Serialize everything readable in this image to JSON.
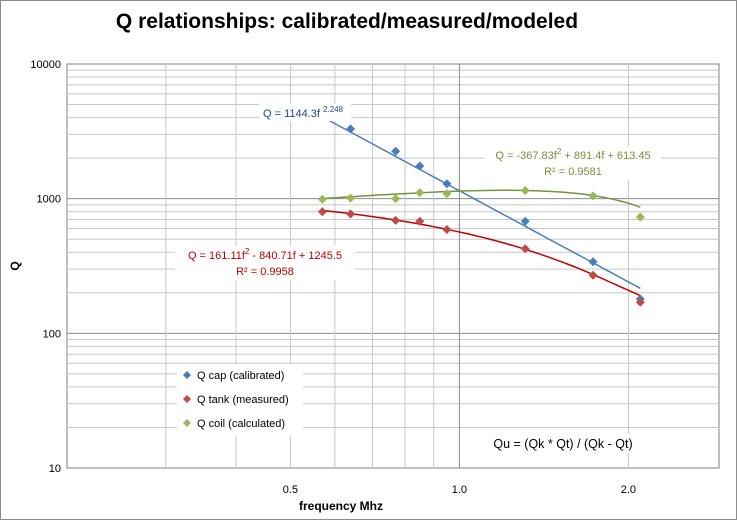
{
  "chart_data": {
    "type": "scatter",
    "title": "Q relationships: calibrated/measured/modeled",
    "xlabel": "frequency  Mhz",
    "ylabel": "Q",
    "x_scale": "log",
    "y_scale": "log",
    "xlim": [
      0.2,
      2.9
    ],
    "ylim": [
      10,
      10000
    ],
    "x_ticks": [
      {
        "value": 0.5,
        "label": "0.5"
      },
      {
        "value": 1.0,
        "label": "1.0"
      },
      {
        "value": 2.0,
        "label": "2.0"
      }
    ],
    "y_ticks": [
      {
        "value": 10,
        "label": "10"
      },
      {
        "value": 100,
        "label": "100"
      },
      {
        "value": 1000,
        "label": "1000"
      },
      {
        "value": 10000,
        "label": "10000"
      }
    ],
    "grid": "log minor + major",
    "legend_placement": "lower-left inside plot",
    "series": [
      {
        "name": "Q cap (calibrated)",
        "color": "#4a7ebb",
        "marker": "diamond",
        "x": [
          0.57,
          0.64,
          0.77,
          0.85,
          0.95,
          1.31,
          1.73,
          2.1
        ],
        "y": [
          4150,
          3300,
          2250,
          1750,
          1290,
          680,
          340,
          180
        ]
      },
      {
        "name": "Q tank (measured)",
        "color": "#be4b48",
        "marker": "diamond",
        "x": [
          0.57,
          0.64,
          0.77,
          0.85,
          0.95,
          1.31,
          1.73,
          2.1
        ],
        "y": [
          800,
          770,
          690,
          680,
          590,
          425,
          270,
          170
        ]
      },
      {
        "name": "Q coil (calculated)",
        "color": "#98b954",
        "marker": "diamond",
        "x": [
          0.57,
          0.64,
          0.77,
          0.85,
          0.95,
          1.31,
          1.73,
          2.1
        ],
        "y": [
          990,
          1010,
          1000,
          1110,
          1090,
          1150,
          1050,
          730
        ]
      }
    ],
    "trendlines": [
      {
        "series": "Q cap (calibrated)",
        "kind": "power",
        "a": 1144.3,
        "b": 2.248,
        "color": "#4a7ebb"
      },
      {
        "series": "Q tank (measured)",
        "kind": "poly2",
        "c2": 161.11,
        "c1": -840.71,
        "c0": 1245.5,
        "color": "#c00000"
      },
      {
        "series": "Q coil (calculated)",
        "kind": "poly2",
        "c2": -367.83,
        "c1": 891.4,
        "c0": 613.45,
        "color": "#77933c"
      }
    ],
    "annotations": {
      "cap_equation": {
        "main": "Q = 1144.3f ",
        "exp": "2.248",
        "color": "#1f497d"
      },
      "coil_equation": {
        "line1_a": "Q = -367.83f",
        "line1_sup": "2",
        "line1_b": " + 891.4f + 613.45",
        "line2": "R² = 0.9581",
        "color": "#77933c"
      },
      "tank_equation": {
        "line1_a": "Q = 161.11f",
        "line1_sup": "2",
        "line1_b": " - 840.71f + 1245.5",
        "line2": "R² = 0.9958",
        "color": "#c00000"
      },
      "formula": "Qu = (Qk * Qt) / (Qk - Qt)"
    }
  }
}
